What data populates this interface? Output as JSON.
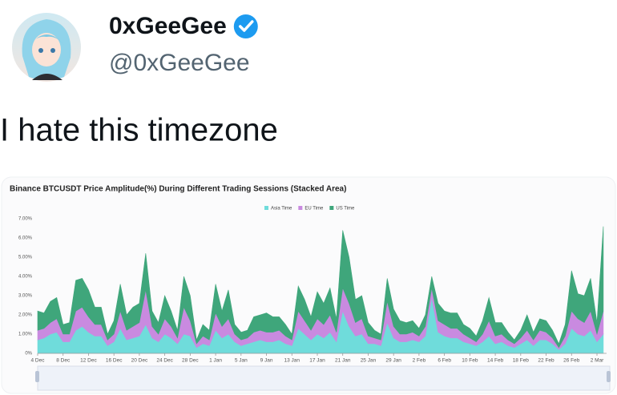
{
  "post": {
    "display_name": "0xGeeGee",
    "handle": "@0xGeeGee",
    "text": "I hate this timezone"
  },
  "chart_data": {
    "type": "stacked_area",
    "title": "Binance BTCUSDT Price Amplitude(%) During Different Trading Sessions  (Stacked Area)",
    "categories": [
      "4 Dec",
      null,
      null,
      null,
      "8 Dec",
      null,
      null,
      null,
      "12 Dec",
      null,
      null,
      null,
      "16 Dec",
      null,
      null,
      null,
      "20 Dec",
      null,
      null,
      null,
      "24 Dec",
      null,
      null,
      null,
      "28 Dec",
      null,
      null,
      null,
      "1 Jan",
      null,
      null,
      null,
      "5 Jan",
      null,
      null,
      null,
      "9 Jan",
      null,
      null,
      null,
      "13 Jan",
      null,
      null,
      null,
      "17 Jan",
      null,
      null,
      null,
      "21 Jan",
      null,
      null,
      null,
      "25 Jan",
      null,
      null,
      null,
      "29 Jan",
      null,
      null,
      null,
      "2 Feb",
      null,
      null,
      null,
      "6 Feb",
      null,
      null,
      null,
      "10 Feb",
      null,
      null,
      null,
      "14 Feb",
      null,
      null,
      null,
      "18 Feb",
      null,
      null,
      null,
      "22 Feb",
      null,
      null,
      null,
      "26 Feb",
      null,
      null,
      null,
      "2 Mar",
      null
    ],
    "series": [
      {
        "name": "Asia Time",
        "color": "#6fdcdb",
        "values": [
          0.7,
          0.8,
          1.0,
          1.1,
          0.6,
          0.6,
          1.2,
          1.4,
          1.1,
          0.9,
          0.9,
          0.4,
          0.6,
          1.3,
          0.7,
          0.8,
          0.9,
          1.5,
          0.8,
          0.6,
          1.0,
          0.8,
          0.5,
          1.0,
          0.9,
          0.3,
          0.5,
          0.4,
          1.2,
          0.8,
          1.0,
          0.6,
          0.4,
          0.5,
          0.6,
          0.7,
          0.6,
          0.6,
          0.7,
          0.5,
          0.4,
          1.3,
          1.0,
          0.7,
          1.0,
          0.8,
          1.1,
          0.6,
          2.2,
          1.4,
          0.9,
          1.0,
          0.5,
          0.5,
          0.4,
          1.6,
          0.8,
          0.6,
          0.6,
          0.7,
          0.6,
          0.9,
          2.9,
          1.1,
          0.9,
          0.8,
          0.8,
          0.6,
          0.5,
          0.4,
          0.6,
          0.9,
          0.5,
          0.6,
          0.4,
          0.3,
          0.5,
          0.7,
          0.4,
          0.7,
          0.7,
          0.5,
          0.2,
          0.5,
          1.3,
          1.0,
          0.9,
          1.2,
          0.6,
          1.0
        ]
      },
      {
        "name": "EU Time",
        "color": "#c98ae0",
        "values": [
          0.5,
          0.5,
          0.6,
          0.7,
          0.4,
          0.4,
          1.0,
          1.0,
          0.8,
          0.6,
          0.6,
          0.3,
          0.4,
          0.9,
          0.5,
          0.6,
          0.7,
          1.8,
          0.6,
          0.4,
          0.8,
          0.6,
          0.3,
          1.4,
          0.8,
          0.2,
          0.4,
          0.3,
          0.9,
          0.6,
          0.8,
          0.4,
          0.3,
          0.3,
          0.5,
          0.5,
          0.5,
          0.5,
          0.5,
          0.4,
          0.3,
          0.9,
          0.7,
          0.5,
          0.8,
          0.7,
          0.9,
          0.5,
          1.2,
          1.2,
          0.7,
          0.8,
          0.4,
          0.3,
          0.3,
          1.1,
          0.6,
          0.4,
          0.4,
          0.4,
          0.3,
          0.5,
          0.5,
          0.6,
          0.6,
          0.5,
          0.5,
          0.4,
          0.3,
          0.2,
          0.4,
          0.8,
          0.4,
          0.4,
          0.3,
          0.2,
          0.3,
          0.5,
          0.3,
          0.5,
          0.4,
          0.3,
          0.1,
          0.4,
          0.9,
          0.8,
          0.7,
          1.0,
          0.4,
          1.2
        ]
      },
      {
        "name": "US Time",
        "color": "#3fa67b",
        "values": [
          1.0,
          0.8,
          1.1,
          1.1,
          0.5,
          0.6,
          1.6,
          1.5,
          1.4,
          0.9,
          0.9,
          0.3,
          0.7,
          1.4,
          0.8,
          1.0,
          1.0,
          1.9,
          0.8,
          0.6,
          1.2,
          0.8,
          0.4,
          1.6,
          1.3,
          0.2,
          0.6,
          0.5,
          1.5,
          0.8,
          1.5,
          0.5,
          0.4,
          0.4,
          0.8,
          0.8,
          1.0,
          0.8,
          0.7,
          0.6,
          0.3,
          1.3,
          1.1,
          0.7,
          1.4,
          1.1,
          1.4,
          0.7,
          3.0,
          2.4,
          1.2,
          1.2,
          0.7,
          0.4,
          0.3,
          1.2,
          0.9,
          0.7,
          0.6,
          0.6,
          0.4,
          0.6,
          0.6,
          0.9,
          0.7,
          0.8,
          0.8,
          0.5,
          0.5,
          0.3,
          0.7,
          1.2,
          0.7,
          0.6,
          0.4,
          0.2,
          0.4,
          0.8,
          0.4,
          0.6,
          0.6,
          0.4,
          0.2,
          0.6,
          2.1,
          1.3,
          1.4,
          1.7,
          0.6,
          4.4
        ]
      }
    ],
    "ylim": [
      0,
      7
    ],
    "yticks": [
      {
        "value": 0,
        "label": "0%"
      },
      {
        "value": 1,
        "label": "1.00%"
      },
      {
        "value": 2,
        "label": "2.00%"
      },
      {
        "value": 3,
        "label": "3.00%"
      },
      {
        "value": 4,
        "label": "4.00%"
      },
      {
        "value": 5,
        "label": "5.00%"
      },
      {
        "value": 6,
        "label": "6.00%"
      },
      {
        "value": 7,
        "label": "7.00%"
      }
    ],
    "grid": false,
    "legend": "top"
  }
}
